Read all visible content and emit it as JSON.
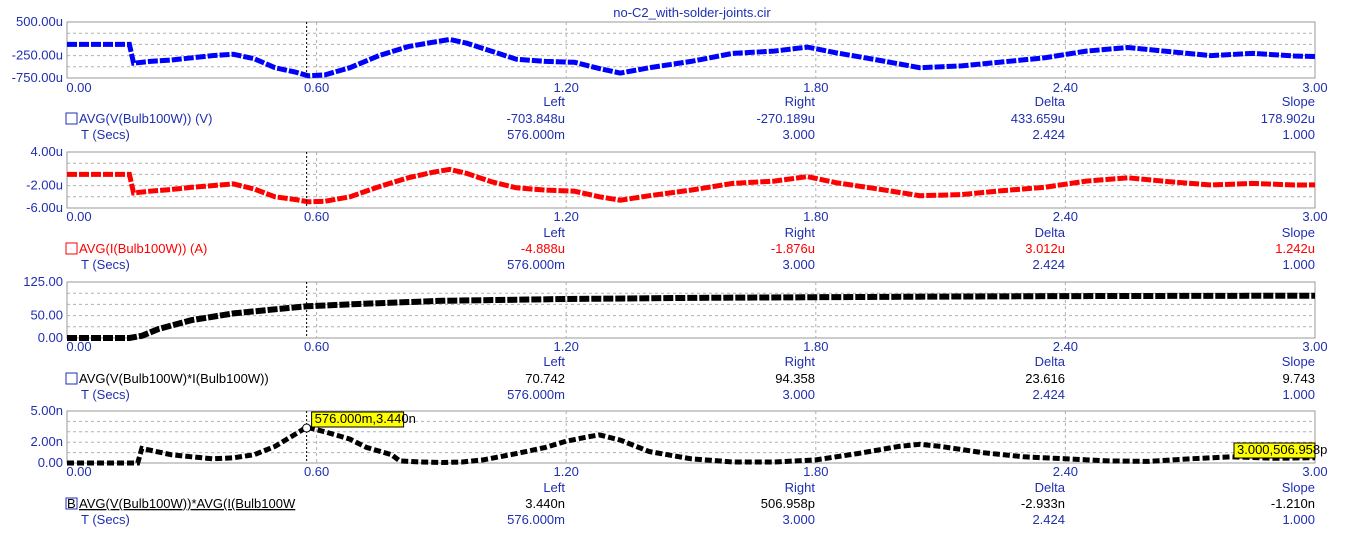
{
  "title": "no-C2_with-solder-joints.cir",
  "cursor_headers": [
    "Left",
    "Right",
    "Delta",
    "Slope"
  ],
  "x_ticks": [
    "0.00",
    "0.60",
    "1.20",
    "1.80",
    "2.40",
    "3.00"
  ],
  "chart_data": [
    {
      "type": "line",
      "name": "AVG(V(Bulb100W)) (V)",
      "xlim": [
        0,
        3
      ],
      "ylim": [
        -750,
        500
      ],
      "y_ticks": [
        "500.00u",
        "-250.00u",
        "-750.00u"
      ],
      "color": "#0000ff",
      "series": [
        {
          "name": "AVG(V(Bulb100W)) (V)",
          "x": [
            0,
            0.15,
            0.16,
            0.2,
            0.25,
            0.3,
            0.35,
            0.4,
            0.45,
            0.5,
            0.55,
            0.58,
            0.62,
            0.68,
            0.75,
            0.82,
            0.88,
            0.92,
            0.96,
            1.02,
            1.08,
            1.15,
            1.22,
            1.28,
            1.33,
            1.4,
            1.5,
            1.6,
            1.7,
            1.78,
            1.85,
            1.95,
            2.05,
            2.15,
            2.25,
            2.35,
            2.45,
            2.55,
            2.65,
            2.75,
            2.85,
            2.95,
            3.0
          ],
          "y": [
            0,
            0,
            -420,
            -380,
            -350,
            -300,
            -250,
            -220,
            -320,
            -520,
            -620,
            -700,
            -680,
            -520,
            -250,
            -50,
            50,
            110,
            30,
            -150,
            -330,
            -380,
            -400,
            -540,
            -640,
            -520,
            -380,
            -200,
            -150,
            -60,
            -190,
            -350,
            -520,
            -480,
            -390,
            -300,
            -150,
            -70,
            -160,
            -250,
            -200,
            -260,
            -270
          ]
        }
      ],
      "cursor": {
        "left_label": "-703.848u",
        "right_label": "-270.189u",
        "delta_label": "433.659u",
        "slope_label": "178.902u",
        "t_left": "576.000m",
        "t_right": "3.000",
        "t_delta": "2.424",
        "t_slope": "1.000"
      }
    },
    {
      "type": "line",
      "name": "AVG(I(Bulb100W)) (A)",
      "xlim": [
        0,
        3
      ],
      "ylim": [
        -6,
        4
      ],
      "y_ticks": [
        "4.00u",
        "-2.00u",
        "-6.00u"
      ],
      "color": "#ff0000",
      "series": [
        {
          "name": "AVG(I(Bulb100W)) (A)",
          "x": [
            0,
            0.15,
            0.16,
            0.2,
            0.25,
            0.3,
            0.35,
            0.4,
            0.45,
            0.5,
            0.55,
            0.58,
            0.62,
            0.68,
            0.75,
            0.82,
            0.88,
            0.92,
            0.96,
            1.02,
            1.08,
            1.15,
            1.22,
            1.28,
            1.33,
            1.4,
            1.5,
            1.6,
            1.7,
            1.78,
            1.85,
            1.95,
            2.05,
            2.15,
            2.25,
            2.35,
            2.45,
            2.55,
            2.65,
            2.75,
            2.85,
            2.95,
            3.0
          ],
          "y": [
            0,
            0,
            -3.3,
            -3.0,
            -2.7,
            -2.3,
            -2.0,
            -1.7,
            -2.6,
            -4.0,
            -4.5,
            -4.9,
            -4.8,
            -4.0,
            -2.2,
            -0.6,
            0.4,
            0.9,
            0.2,
            -1.3,
            -2.4,
            -2.8,
            -3.0,
            -4.0,
            -4.6,
            -3.8,
            -2.8,
            -1.6,
            -1.2,
            -0.4,
            -1.5,
            -2.6,
            -3.8,
            -3.6,
            -2.9,
            -2.3,
            -1.2,
            -0.6,
            -1.3,
            -1.9,
            -1.6,
            -1.9,
            -1.88
          ]
        }
      ],
      "cursor": {
        "left_label": "-4.888u",
        "right_label": "-1.876u",
        "delta_label": "3.012u",
        "slope_label": "1.242u",
        "t_left": "576.000m",
        "t_right": "3.000",
        "t_delta": "2.424",
        "t_slope": "1.000"
      }
    },
    {
      "type": "line",
      "name": "AVG(V(Bulb100W)*I(Bulb100W))",
      "xlim": [
        0,
        3
      ],
      "ylim": [
        0,
        125
      ],
      "y_ticks": [
        "125.00",
        "50.00",
        "0.00"
      ],
      "color": "#000000",
      "series": [
        {
          "name": "AVG(V(Bulb100W)*I(Bulb100W))",
          "x": [
            0,
            0.15,
            0.18,
            0.22,
            0.3,
            0.4,
            0.5,
            0.576,
            0.7,
            0.9,
            1.2,
            1.5,
            1.8,
            2.1,
            2.4,
            2.7,
            3.0
          ],
          "y": [
            0,
            0,
            5,
            20,
            40,
            55,
            64,
            70.7,
            76,
            83,
            87,
            89.5,
            91,
            92.5,
            93.5,
            94,
            94.4
          ]
        }
      ],
      "cursor": {
        "left_label": "70.742",
        "right_label": "94.358",
        "delta_label": "23.616",
        "slope_label": "9.743",
        "t_left": "576.000m",
        "t_right": "3.000",
        "t_delta": "2.424",
        "t_slope": "1.000"
      }
    },
    {
      "type": "line",
      "name": "AVG(V(Bulb100W))*AVG(I(Bulb100W",
      "xlim": [
        0,
        3
      ],
      "ylim": [
        0,
        5
      ],
      "y_ticks": [
        "5.00n",
        "2.00n",
        "0.00"
      ],
      "color": "#000000",
      "series": [
        {
          "name": "AVG(V(Bulb100W))*AVG(I(Bulb100W",
          "x": [
            0,
            0.17,
            0.18,
            0.25,
            0.3,
            0.35,
            0.4,
            0.45,
            0.5,
            0.55,
            0.576,
            0.62,
            0.68,
            0.72,
            0.78,
            0.8,
            0.85,
            0.9,
            0.95,
            1.0,
            1.08,
            1.15,
            1.2,
            1.25,
            1.28,
            1.33,
            1.4,
            1.5,
            1.6,
            1.7,
            1.8,
            1.9,
            2.0,
            2.05,
            2.1,
            2.2,
            2.3,
            2.4,
            2.5,
            2.6,
            2.7,
            2.8,
            2.9,
            3.0
          ],
          "y": [
            0,
            0,
            1.4,
            0.8,
            0.6,
            0.4,
            0.5,
            0.8,
            1.6,
            2.8,
            3.44,
            3.0,
            2.3,
            1.5,
            0.8,
            0.2,
            0.1,
            0.05,
            0.1,
            0.3,
            0.9,
            1.5,
            2.1,
            2.5,
            2.7,
            2.2,
            1.1,
            0.4,
            0.1,
            0.1,
            0.3,
            0.9,
            1.6,
            1.8,
            1.6,
            1.0,
            0.6,
            0.4,
            0.2,
            0.15,
            0.4,
            0.6,
            0.45,
            0.507
          ]
        }
      ],
      "cursor": {
        "left_label": "3.440n",
        "right_label": "506.958p",
        "delta_label": "-2.933n",
        "slope_label": "-1.210n",
        "t_left": "576.000m",
        "t_right": "3.000",
        "t_delta": "2.424",
        "t_slope": "1.000"
      },
      "tooltip_left": "576.000m,3.440n",
      "tooltip_right": "3.000,506.958p"
    }
  ],
  "t_axis_label": "T (Secs)",
  "cursor_x": 0.576
}
